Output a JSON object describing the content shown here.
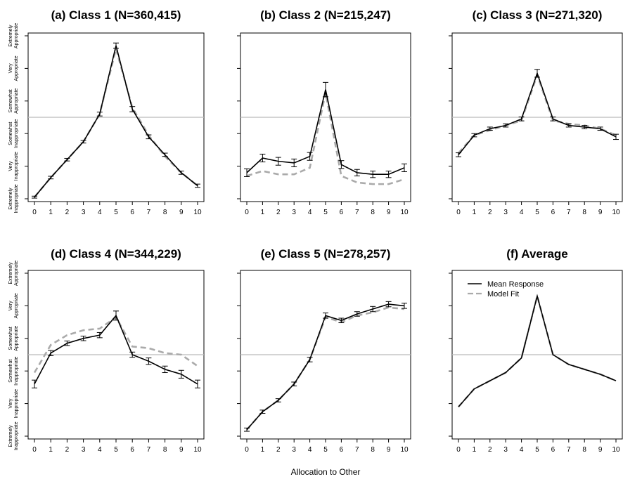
{
  "figure": {
    "xlabel": "Allocation to Other"
  },
  "chart_data": [
    {
      "type": "line",
      "title": "(a) Class 1 (N=360,415)",
      "x": [
        0,
        1,
        2,
        3,
        4,
        5,
        6,
        7,
        8,
        9,
        10
      ],
      "xlim": [
        0,
        10
      ],
      "ylim": [
        1,
        6
      ],
      "series": [
        {
          "name": "Mean Response",
          "values": [
            1.05,
            1.65,
            2.2,
            2.75,
            3.6,
            5.7,
            3.75,
            2.9,
            2.35,
            1.8,
            1.4
          ],
          "err": [
            0.03,
            0.04,
            0.04,
            0.04,
            0.06,
            0.08,
            0.08,
            0.06,
            0.05,
            0.05,
            0.05
          ]
        },
        {
          "name": "Model Fit",
          "values": [
            1.05,
            1.65,
            2.2,
            2.75,
            3.6,
            5.6,
            3.8,
            2.95,
            2.3,
            1.8,
            1.4
          ]
        }
      ]
    },
    {
      "type": "line",
      "title": "(b) Class 2 (N=215,247)",
      "x": [
        0,
        1,
        2,
        3,
        4,
        5,
        6,
        7,
        8,
        9,
        10
      ],
      "xlim": [
        0,
        10
      ],
      "ylim": [
        1,
        6
      ],
      "series": [
        {
          "name": "Mean Response",
          "values": [
            1.8,
            2.25,
            2.15,
            2.1,
            2.3,
            4.35,
            2.05,
            1.8,
            1.75,
            1.75,
            1.95
          ],
          "err": [
            0.12,
            0.12,
            0.12,
            0.12,
            0.12,
            0.22,
            0.12,
            0.1,
            0.1,
            0.1,
            0.12
          ]
        },
        {
          "name": "Model Fit",
          "values": [
            1.7,
            1.85,
            1.75,
            1.75,
            1.95,
            4.25,
            1.7,
            1.5,
            1.45,
            1.45,
            1.6
          ]
        }
      ]
    },
    {
      "type": "line",
      "title": "(c) Class 3 (N=271,320)",
      "x": [
        0,
        1,
        2,
        3,
        4,
        5,
        6,
        7,
        8,
        9,
        10
      ],
      "xlim": [
        0,
        10
      ],
      "ylim": [
        1,
        6
      ],
      "series": [
        {
          "name": "Mean Response",
          "values": [
            2.35,
            2.95,
            3.15,
            3.25,
            3.45,
            4.85,
            3.45,
            3.25,
            3.2,
            3.15,
            2.9
          ],
          "err": [
            0.06,
            0.05,
            0.05,
            0.05,
            0.06,
            0.12,
            0.06,
            0.05,
            0.05,
            0.05,
            0.08
          ]
        },
        {
          "name": "Model Fit",
          "values": [
            2.4,
            2.95,
            3.1,
            3.25,
            3.4,
            4.8,
            3.4,
            3.3,
            3.25,
            3.15,
            2.95
          ]
        }
      ]
    },
    {
      "type": "line",
      "title": "(d) Class 4 (N=344,229)",
      "x": [
        0,
        1,
        2,
        3,
        4,
        5,
        6,
        7,
        8,
        9,
        10
      ],
      "xlim": [
        0,
        10
      ],
      "ylim": [
        1,
        6
      ],
      "series": [
        {
          "name": "Mean Response",
          "values": [
            2.6,
            3.55,
            3.85,
            4.0,
            4.1,
            4.7,
            3.5,
            3.3,
            3.05,
            2.9,
            2.6
          ],
          "err": [
            0.12,
            0.08,
            0.07,
            0.07,
            0.08,
            0.14,
            0.08,
            0.1,
            0.1,
            0.12,
            0.12
          ]
        },
        {
          "name": "Model Fit",
          "values": [
            2.95,
            3.8,
            4.1,
            4.25,
            4.3,
            4.65,
            3.75,
            3.7,
            3.55,
            3.5,
            3.15
          ]
        }
      ]
    },
    {
      "type": "line",
      "title": "(e) Class 5 (N=278,257)",
      "x": [
        0,
        1,
        2,
        3,
        4,
        5,
        6,
        7,
        8,
        9,
        10
      ],
      "xlim": [
        0,
        10
      ],
      "ylim": [
        1,
        6
      ],
      "series": [
        {
          "name": "Mean Response",
          "values": [
            1.2,
            1.75,
            2.1,
            2.6,
            3.35,
            4.7,
            4.55,
            4.75,
            4.9,
            5.05,
            5.0
          ],
          "err": [
            0.05,
            0.05,
            0.05,
            0.06,
            0.07,
            0.08,
            0.07,
            0.07,
            0.08,
            0.08,
            0.08
          ]
        },
        {
          "name": "Model Fit",
          "values": [
            1.2,
            1.75,
            2.1,
            2.6,
            3.35,
            4.65,
            4.5,
            4.7,
            4.8,
            4.95,
            4.9
          ]
        }
      ]
    },
    {
      "type": "line",
      "title": "(f) Average",
      "x": [
        0,
        1,
        2,
        3,
        4,
        5,
        6,
        7,
        8,
        9,
        10
      ],
      "xlim": [
        0,
        10
      ],
      "ylim": [
        1,
        6
      ],
      "legend": {
        "position": "top-left",
        "entries": [
          "Mean Response",
          "Model Fit"
        ]
      },
      "series": [
        {
          "name": "Mean Response",
          "values": [
            1.9,
            2.45,
            2.7,
            2.95,
            3.4,
            5.3,
            3.5,
            3.2,
            3.05,
            2.9,
            2.7
          ]
        },
        {
          "name": "Model Fit",
          "values": [
            1.9,
            2.45,
            2.7,
            2.95,
            3.4,
            5.3,
            3.5,
            3.2,
            3.05,
            2.9,
            2.7
          ]
        }
      ]
    }
  ],
  "y_axis_labels": [
    [
      "Extremely",
      "Inappropriate"
    ],
    [
      "Very",
      "Inappropriate"
    ],
    [
      "Somewhat",
      "Inappropriate"
    ],
    [
      "Somewhat",
      "Appropriate"
    ],
    [
      "Very",
      "Appropriate"
    ],
    [
      "Extremely",
      "Appropriate"
    ]
  ],
  "reference_line_y": 3.5,
  "colors": {
    "mean": "#000000",
    "fit": "#aaaaaa",
    "refline": "#bbbbbb",
    "frame": "#000000"
  }
}
